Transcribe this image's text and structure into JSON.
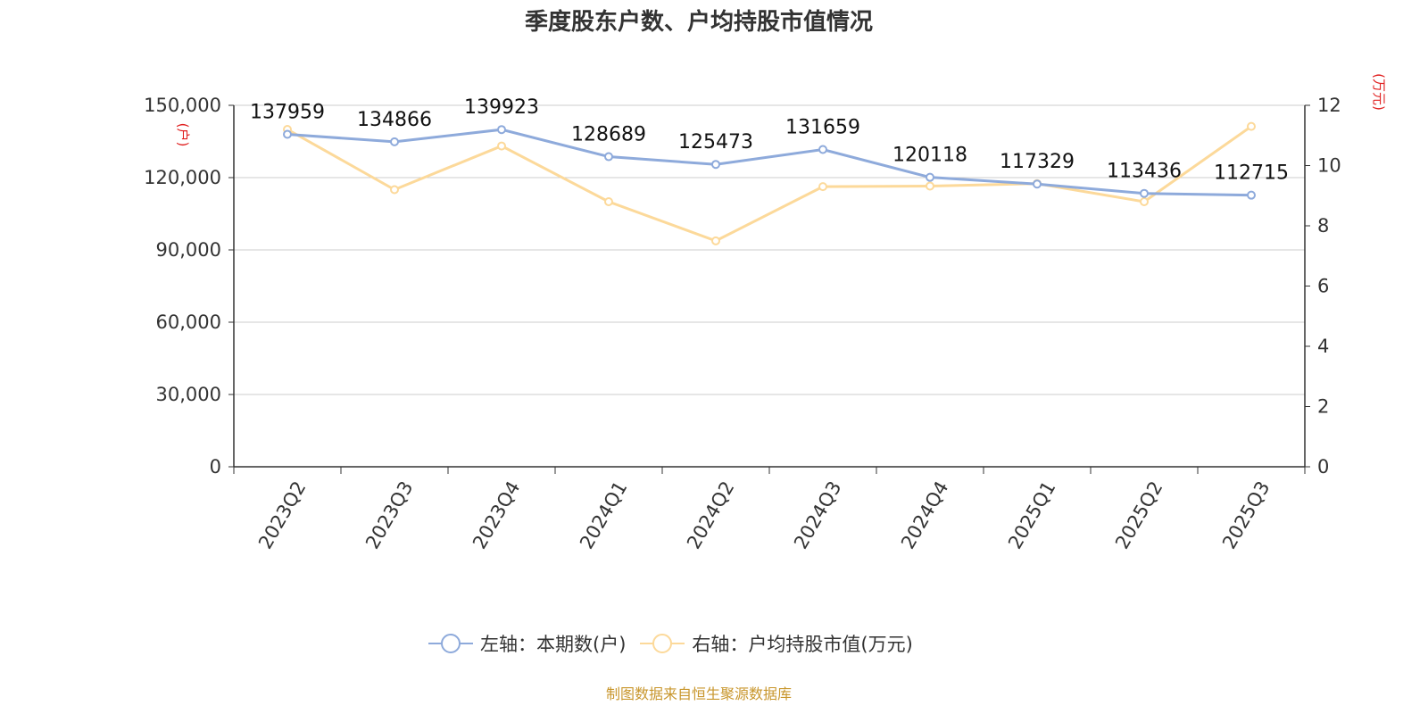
{
  "title": "季度股东户数、户均持股市值情况",
  "source": "制图数据来自恒生聚源数据库",
  "left_axis_unit": "(户)",
  "right_axis_unit": "(万元)",
  "legend": [
    {
      "label": "左轴：本期数(户)",
      "color": "#8eaadb"
    },
    {
      "label": "右轴：户均持股市值(万元)",
      "color": "#fcd99a"
    }
  ],
  "chart_data": {
    "type": "line",
    "categories": [
      "2023Q2",
      "2023Q3",
      "2023Q4",
      "2024Q1",
      "2024Q2",
      "2024Q3",
      "2024Q4",
      "2025Q1",
      "2025Q2",
      "2025Q3"
    ],
    "series": [
      {
        "name": "左轴：本期数(户)",
        "axis": "left",
        "color": "#8eaadb",
        "values": [
          137959,
          134866,
          139923,
          128689,
          125473,
          131659,
          120118,
          117329,
          113436,
          112715
        ],
        "show_labels": true
      },
      {
        "name": "右轴：户均持股市值(万元)",
        "axis": "right",
        "color": "#fcd99a",
        "values": [
          11.2,
          9.2,
          10.65,
          8.8,
          7.5,
          9.3,
          9.32,
          9.4,
          8.8,
          11.3
        ],
        "show_labels": false
      }
    ],
    "left_axis": {
      "min": 0,
      "max": 150000,
      "ticks": [
        0,
        30000,
        60000,
        90000,
        120000,
        150000
      ],
      "tick_labels": [
        "0",
        "30,000",
        "60,000",
        "90,000",
        "120,000",
        "150,000"
      ]
    },
    "right_axis": {
      "min": 0,
      "max": 12,
      "ticks": [
        0,
        2,
        4,
        6,
        8,
        10,
        12
      ],
      "tick_labels": [
        "0",
        "2",
        "4",
        "6",
        "8",
        "10",
        "12"
      ]
    },
    "grid": true,
    "legend_position": "bottom"
  }
}
